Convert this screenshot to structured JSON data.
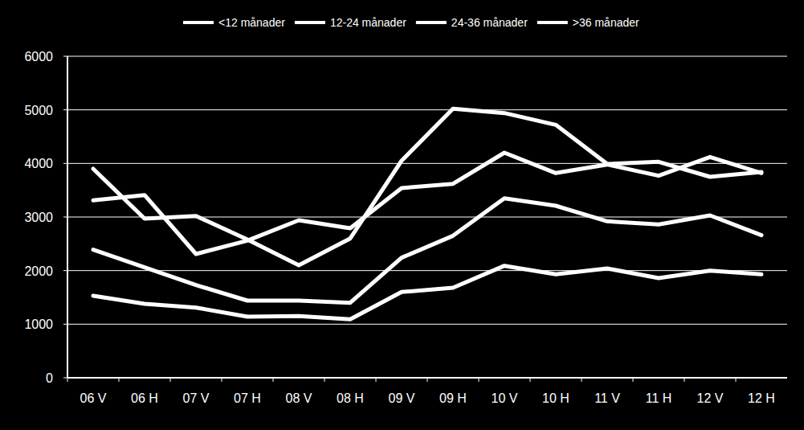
{
  "chart_data": {
    "type": "line",
    "categories": [
      "06 V",
      "06 H",
      "07 V",
      "07 H",
      "08 V",
      "08 H",
      "09 V",
      "09 H",
      "10 V",
      "10 H",
      "11 V",
      "11 H",
      "12 V",
      "12 H"
    ],
    "series": [
      {
        "name": "<12 månader",
        "color": "#ffffff",
        "values": [
          1530,
          1380,
          1310,
          1140,
          1150,
          1090,
          1600,
          1680,
          2090,
          1930,
          2040,
          1860,
          2000,
          1930
        ]
      },
      {
        "name": "12-24 månader",
        "color": "#ffffff",
        "values": [
          2390,
          2060,
          1730,
          1440,
          1440,
          1400,
          2240,
          2650,
          3350,
          3210,
          2920,
          2860,
          3030,
          2660
        ]
      },
      {
        "name": "24-36 månader",
        "color": "#ffffff",
        "values": [
          3310,
          3410,
          2310,
          2560,
          2940,
          2790,
          3540,
          3620,
          4200,
          3820,
          3980,
          3770,
          4120,
          3820
        ]
      },
      {
        "name": ">36 månader",
        "color": "#ffffff",
        "values": [
          3900,
          2970,
          3020,
          2580,
          2100,
          2600,
          4050,
          5020,
          4940,
          4720,
          3990,
          4030,
          3750,
          3840
        ]
      }
    ],
    "ylim": [
      0,
      6000
    ],
    "yticks": [
      0,
      1000,
      2000,
      3000,
      4000,
      5000,
      6000
    ],
    "grid": true,
    "legend": "top"
  }
}
